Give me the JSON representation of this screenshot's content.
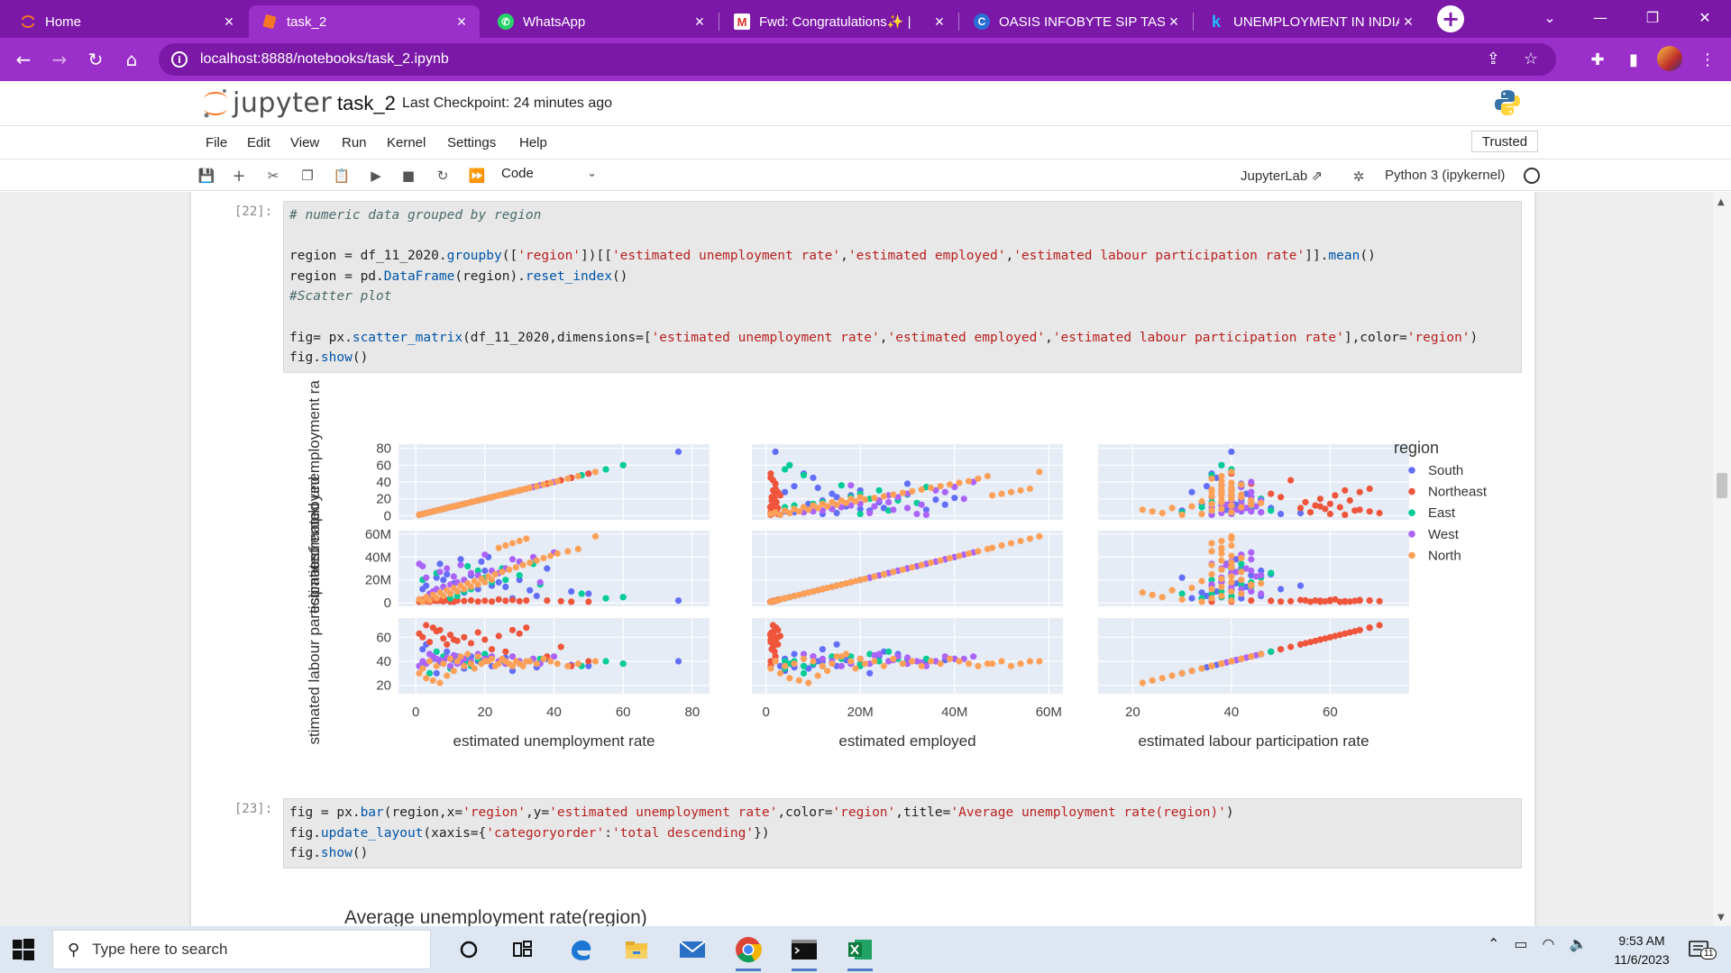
{
  "browser": {
    "tabs": [
      {
        "label": "Home",
        "icon": "jupyter-icon",
        "active": false
      },
      {
        "label": "task_2",
        "icon": "jupyter-icon",
        "active": true
      },
      {
        "label": "WhatsApp",
        "icon": "whatsapp-icon",
        "active": false
      },
      {
        "label": "Fwd: Congratulations✨ | ",
        "icon": "gmail-icon",
        "active": false
      },
      {
        "label": "OASIS INFOBYTE SIP TASK",
        "icon": "c-icon",
        "active": false
      },
      {
        "label": "UNEMPLOYMENT IN INDIA",
        "icon": "kaggle-icon",
        "active": false
      }
    ],
    "url": "localhost:8888/notebooks/task_2.ipynb"
  },
  "jupyter": {
    "logo_text": "jupyter",
    "notebook_title": "task_2",
    "checkpoint": "Last Checkpoint: 24 minutes ago",
    "menu": [
      "File",
      "Edit",
      "View",
      "Run",
      "Kernel",
      "Settings",
      "Help"
    ],
    "trusted": "Trusted",
    "cell_type": "Code",
    "jupyterlab_link": "JupyterLab",
    "kernel": "Python 3 (ipykernel)"
  },
  "cells": [
    {
      "prompt": "[22]:",
      "lines": [
        "# numeric data grouped by region",
        "",
        "region = df_11_2020.groupby(['region'])[['estimated unemployment rate','estimated employed','estimated labour participation rate']].mean()",
        "region = pd.DataFrame(region).reset_index()",
        "#Scatter plot",
        "",
        "fig= px.scatter_matrix(df_11_2020,dimensions=['estimated unemployment rate','estimated employed','estimated labour participation rate'],color='region')",
        "fig.show()"
      ]
    },
    {
      "prompt": "[23]:",
      "lines": [
        "fig = px.bar(region,x='region',y='estimated unemployment rate',color='region',title='Average unemployment rate(region)')",
        "fig.update_layout(xaxis={'categoryorder':'total descending'})",
        "fig.show()"
      ]
    }
  ],
  "chart_data": [
    {
      "type": "scatter",
      "subtype": "scatter_matrix",
      "dimensions": [
        "estimated unemployment rate",
        "estimated employed",
        "estimated labour participation rate"
      ],
      "row_labels": [
        "estimated unemployment ra",
        "estimated employed",
        "stimated labour participation r"
      ],
      "ranges": {
        "estimated unemployment rate": [
          -5,
          85
        ],
        "estimated employed": [
          -3000000,
          63000000
        ],
        "estimated labour participation rate": [
          13,
          76
        ]
      },
      "ticks": {
        "estimated unemployment rate": {
          "x": [
            "0",
            "20",
            "40",
            "60",
            "80"
          ],
          "y": [
            "0",
            "20",
            "40",
            "60",
            "80"
          ]
        },
        "estimated employed": {
          "x": [
            "0",
            "20M",
            "40M",
            "60M"
          ],
          "y": [
            "0",
            "20M",
            "40M",
            "60M"
          ]
        },
        "estimated labour participation rate": {
          "x": [
            "20",
            "40",
            "60"
          ],
          "y": [
            "20",
            "40",
            "60"
          ]
        }
      },
      "legend": {
        "title": "region",
        "position": "right"
      },
      "grid": true,
      "series": [
        {
          "name": "South",
          "color": "#636efa",
          "points": [
            [
              76,
              2000000,
              40
            ],
            [
              60,
              5000000,
              38
            ],
            [
              50,
              8000000,
              36
            ],
            [
              38,
              30000000,
              42
            ],
            [
              30,
              20000000,
              38
            ],
            [
              24,
              18000000,
              40
            ],
            [
              22,
              15000000,
              36
            ],
            [
              18,
              12000000,
              40
            ],
            [
              12,
              10000000,
              44
            ],
            [
              10,
              8000000,
              42
            ],
            [
              8,
              20000000,
              38
            ],
            [
              6,
              22000000,
              30
            ],
            [
              5,
              4000000,
              42
            ],
            [
              4,
              6000000,
              46
            ],
            [
              3,
              15000000,
              54
            ],
            [
              2,
              12000000,
              50
            ],
            [
              1,
              3000000,
              36
            ],
            [
              14,
              9000000,
              34
            ],
            [
              28,
              4000000,
              32
            ],
            [
              35,
              6000000,
              35
            ],
            [
              20,
              28000000,
              46
            ],
            [
              16,
              24000000,
              44
            ],
            [
              9,
              25000000,
              48
            ],
            [
              11,
              17000000,
              41
            ],
            [
              26,
              14000000,
              43
            ],
            [
              33,
              11000000,
              40
            ],
            [
              45,
              10000000,
              37
            ],
            [
              7,
              34000000,
              39
            ],
            [
              13,
              38000000,
              41
            ],
            [
              19,
              36000000,
              40
            ],
            [
              21,
              40000000,
              42
            ]
          ]
        },
        {
          "name": "Northeast",
          "color": "#ef553b",
          "points": [
            [
              45,
              1000000,
              36
            ],
            [
              32,
              2000000,
              68
            ],
            [
              30,
              1500000,
              63
            ],
            [
              28,
              2500000,
              66
            ],
            [
              24,
              3000000,
              61
            ],
            [
              20,
              1800000,
              58
            ],
            [
              18,
              1200000,
              64
            ],
            [
              16,
              2200000,
              55
            ],
            [
              14,
              1600000,
              60
            ],
            [
              12,
              2000000,
              57
            ],
            [
              10,
              900000,
              62
            ],
            [
              8,
              1300000,
              59
            ],
            [
              6,
              1700000,
              65
            ],
            [
              5,
              2100000,
              68
            ],
            [
              4,
              1000000,
              56
            ],
            [
              3,
              1500000,
              70
            ],
            [
              2,
              2500000,
              60
            ],
            [
              1,
              1000000,
              63
            ],
            [
              38,
              2000000,
              44
            ],
            [
              42,
              1500000,
              52
            ],
            [
              26,
              1800000,
              48
            ],
            [
              22,
              1200000,
              50
            ],
            [
              50,
              1000000,
              40
            ],
            [
              7,
              2000000,
              66
            ],
            [
              9,
              2500000,
              54
            ],
            [
              11,
              1000000,
              58
            ]
          ]
        },
        {
          "name": "East",
          "color": "#00cc96",
          "points": [
            [
              60,
              5000000,
              38
            ],
            [
              55,
              4000000,
              40
            ],
            [
              48,
              8000000,
              36
            ],
            [
              36,
              16000000,
              42
            ],
            [
              30,
              24000000,
              40
            ],
            [
              26,
              20000000,
              38
            ],
            [
              22,
              18000000,
              44
            ],
            [
              20,
              22000000,
              46
            ],
            [
              18,
              28000000,
              42
            ],
            [
              16,
              12000000,
              36
            ],
            [
              14,
              10000000,
              38
            ],
            [
              12,
              6000000,
              40
            ],
            [
              10,
              4000000,
              34
            ],
            [
              8,
              14000000,
              44
            ],
            [
              6,
              26000000,
              48
            ],
            [
              4,
              8000000,
              30
            ],
            [
              2,
              20000000,
              36
            ],
            [
              25,
              30000000,
              40
            ],
            [
              34,
              34000000,
              42
            ],
            [
              15,
              32000000,
              40
            ]
          ]
        },
        {
          "name": "West",
          "color": "#ab63fa",
          "points": [
            [
              40,
              44000000,
              44
            ],
            [
              34,
              40000000,
              42
            ],
            [
              30,
              36000000,
              40
            ],
            [
              26,
              30000000,
              38
            ],
            [
              22,
              28000000,
              44
            ],
            [
              18,
              24000000,
              46
            ],
            [
              16,
              26000000,
              40
            ],
            [
              14,
              20000000,
              42
            ],
            [
              12,
              18000000,
              38
            ],
            [
              10,
              16000000,
              36
            ],
            [
              8,
              14000000,
              40
            ],
            [
              6,
              12000000,
              42
            ],
            [
              5,
              10000000,
              44
            ],
            [
              4,
              8000000,
              46
            ],
            [
              3,
              22000000,
              38
            ],
            [
              2,
              32000000,
              40
            ],
            [
              1,
              34000000,
              36
            ],
            [
              28,
              38000000,
              44
            ],
            [
              20,
              42000000,
              42
            ],
            [
              24,
              26000000,
              40
            ],
            [
              36,
              18000000,
              38
            ],
            [
              11,
              23000000,
              45
            ],
            [
              7,
              27000000,
              41
            ],
            [
              9,
              30000000,
              43
            ],
            [
              13,
              33000000,
              39
            ]
          ]
        },
        {
          "name": "North",
          "color": "#fea057",
          "points": [
            [
              32,
              56000000,
              40
            ],
            [
              30,
              54000000,
              38
            ],
            [
              28,
              52000000,
              36
            ],
            [
              26,
              50000000,
              40
            ],
            [
              24,
              48000000,
              38
            ],
            [
              22,
              20000000,
              42
            ],
            [
              20,
              18000000,
              40
            ],
            [
              18,
              16000000,
              44
            ],
            [
              16,
              14000000,
              38
            ],
            [
              14,
              12000000,
              36
            ],
            [
              12,
              10000000,
              40
            ],
            [
              10,
              8000000,
              42
            ],
            [
              8,
              6000000,
              38
            ],
            [
              6,
              4000000,
              36
            ],
            [
              4,
              2000000,
              40
            ],
            [
              2,
              1000000,
              34
            ],
            [
              1,
              3000000,
              30
            ],
            [
              3,
              5000000,
              26
            ],
            [
              5,
              7000000,
              24
            ],
            [
              7,
              9000000,
              22
            ],
            [
              9,
              11000000,
              28
            ],
            [
              11,
              13000000,
              32
            ],
            [
              13,
              15000000,
              44
            ],
            [
              15,
              17000000,
              46
            ],
            [
              17,
              19000000,
              34
            ],
            [
              19,
              21000000,
              38
            ],
            [
              21,
              23000000,
              40
            ],
            [
              23,
              25000000,
              36
            ],
            [
              25,
              27000000,
              42
            ],
            [
              27,
              29000000,
              38
            ],
            [
              29,
              31000000,
              40
            ],
            [
              31,
              33000000,
              36
            ],
            [
              33,
              35000000,
              40
            ],
            [
              35,
              37000000,
              38
            ],
            [
              37,
              39000000,
              42
            ],
            [
              39,
              41000000,
              40
            ],
            [
              41,
              43000000,
              38
            ],
            [
              44,
              45000000,
              36
            ],
            [
              47,
              47000000,
              38
            ],
            [
              52,
              58000000,
              40
            ]
          ]
        }
      ]
    }
  ],
  "plot2": {
    "title": "Average unemployment rate(region)"
  },
  "taskbar": {
    "search_placeholder": "Type here to search",
    "time": "9:53 AM",
    "date": "11/6/2023",
    "notification_count": "11"
  }
}
